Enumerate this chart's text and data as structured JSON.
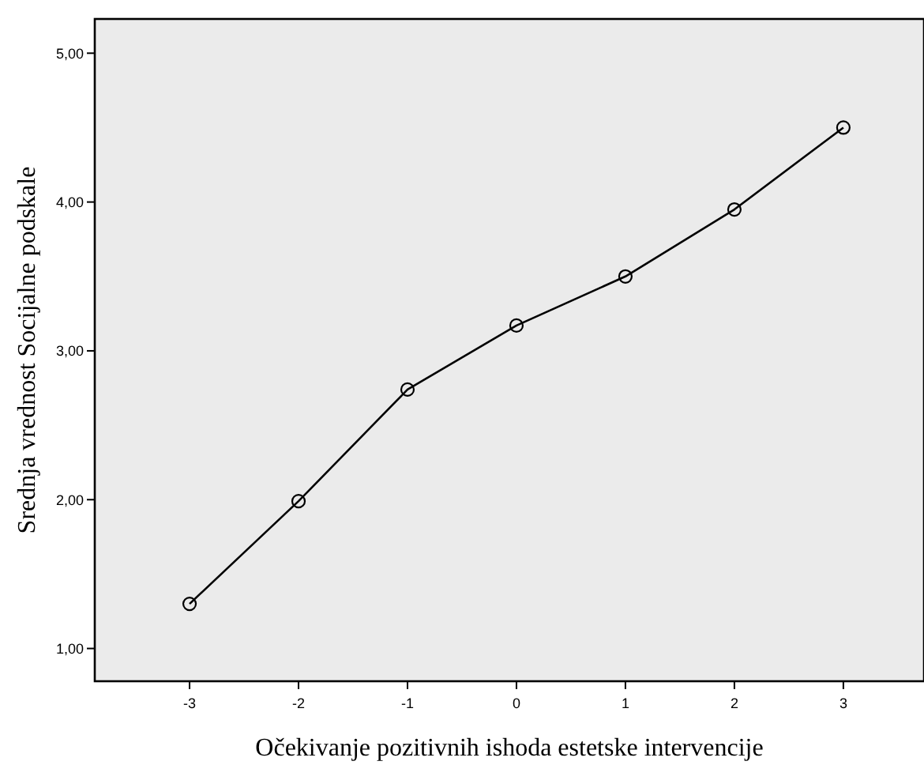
{
  "chart_data": {
    "type": "line",
    "xlabel": "Očekivanje pozitivnih ishoda estetske intervencije",
    "ylabel": "Srednja vrednost Socijalne podskale",
    "x": [
      -3,
      -2,
      -1,
      0,
      1,
      2,
      3
    ],
    "series": [
      {
        "color": "#000000",
        "values": [
          1.3,
          1.99,
          2.74,
          3.17,
          3.5,
          3.95,
          4.5
        ]
      }
    ],
    "xlim": [
      -3.87,
      3.74
    ],
    "ylim": [
      0.78,
      5.23
    ],
    "xticks": [
      -3,
      -2,
      -1,
      0,
      1,
      2,
      3
    ],
    "yticks": [
      {
        "value": 1,
        "label": "1,00"
      },
      {
        "value": 2,
        "label": "2,00"
      },
      {
        "value": 3,
        "label": "3,00"
      },
      {
        "value": 4,
        "label": "4,00"
      },
      {
        "value": 5,
        "label": "5,00"
      }
    ],
    "grid": false,
    "marker": "circle",
    "line_style": "solid"
  }
}
